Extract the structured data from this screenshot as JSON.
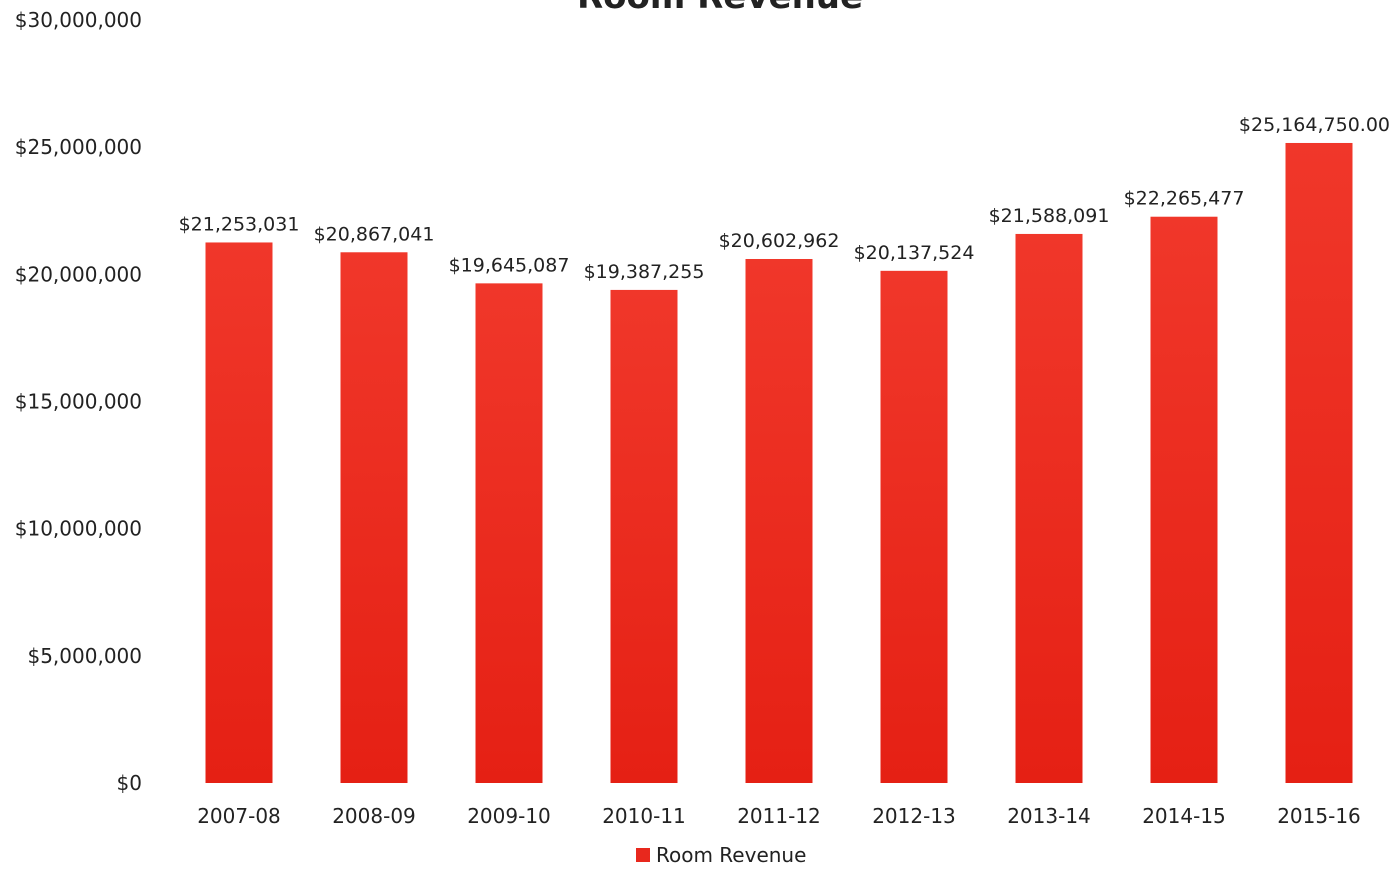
{
  "chart_data": {
    "type": "bar",
    "title": "Room Revenue",
    "xlabel": "",
    "ylabel": "",
    "categories": [
      "2007-08",
      "2008-09",
      "2009-10",
      "2010-11",
      "2011-12",
      "2012-13",
      "2013-14",
      "2014-15",
      "2015-16"
    ],
    "series": [
      {
        "name": "Room Revenue",
        "values": [
          21253031,
          20867041,
          19645087,
          19387255,
          20602962,
          20137524,
          21588091,
          22265477,
          25164750.0
        ],
        "labels": [
          "$21,253,031",
          "$20,867,041",
          "$19,645,087",
          "$19,387,255",
          "$20,602,962",
          "$20,137,524",
          "$21,588,091",
          "$22,265,477",
          "$25,164,750.00"
        ]
      }
    ],
    "ylim": [
      0,
      30000000
    ],
    "yticks": [
      0,
      5000000,
      10000000,
      15000000,
      20000000,
      25000000,
      30000000
    ],
    "ytick_labels": [
      "$0",
      "$5,000,000",
      "$10,000,000",
      "$15,000,000",
      "$20,000,000",
      "$25,000,000",
      "$30,000,000"
    ],
    "grid": false,
    "legend_position": "bottom",
    "colors": {
      "bar": "#ee2b1f",
      "bar_light": "#f1372b",
      "bar_dark": "#e51f13",
      "legend_marker": "#e8281d"
    }
  }
}
